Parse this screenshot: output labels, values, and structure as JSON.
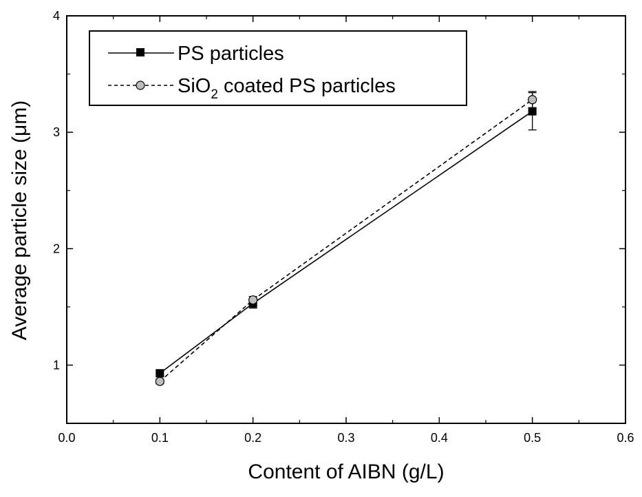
{
  "chart_data": {
    "type": "line",
    "xlabel": "Content of AIBN (g/L)",
    "ylabel": "Average particle size (μm)",
    "xlim": [
      0.0,
      0.6
    ],
    "ylim": [
      0.5,
      4.0
    ],
    "xticks": [
      0.0,
      0.1,
      0.2,
      0.3,
      0.4,
      0.5,
      0.6
    ],
    "xtick_labels": [
      "0.0",
      "0.1",
      "0.2",
      "0.3",
      "0.4",
      "0.5",
      "0.6"
    ],
    "yticks": [
      1,
      2,
      3,
      4
    ],
    "ytick_labels": [
      "1",
      "2",
      "3",
      "4"
    ],
    "grid": false,
    "legend_position": "top-left",
    "series": [
      {
        "name": "PS particles",
        "legend_label": {
          "pre": "PS particles",
          "sub": "",
          "post": ""
        },
        "x": [
          0.1,
          0.2,
          0.5
        ],
        "y": [
          0.93,
          1.53,
          3.18
        ],
        "error": [
          0.03,
          0.04,
          0.16
        ],
        "line_style": "solid",
        "marker": "filled-square",
        "color": "#000000"
      },
      {
        "name": "SiO2 coated PS particles",
        "legend_label": {
          "pre": "SiO",
          "sub": "2",
          "post": " coated PS particles"
        },
        "x": [
          0.1,
          0.2,
          0.5
        ],
        "y": [
          0.86,
          1.56,
          3.28
        ],
        "error": [
          0.02,
          0.03,
          0.07
        ],
        "line_style": "dashed",
        "marker": "open-circle",
        "color": "#000000",
        "marker_fill": "#bdbdbd"
      }
    ]
  }
}
